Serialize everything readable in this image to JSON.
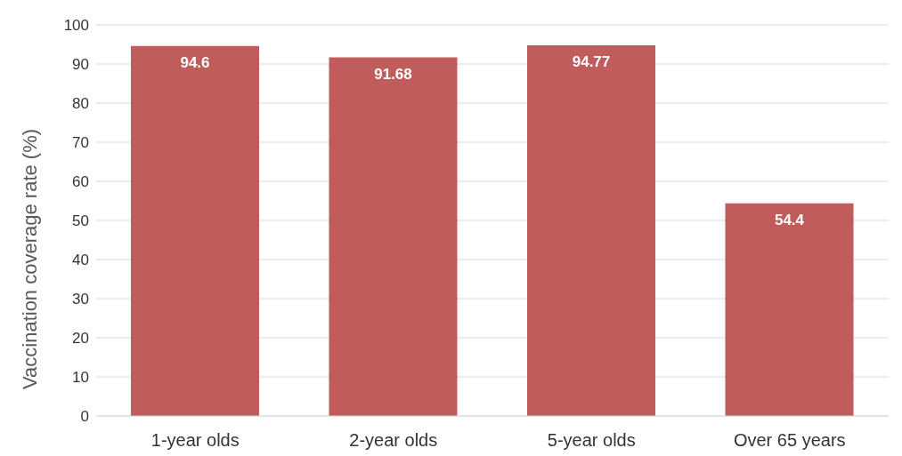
{
  "chart_data": {
    "type": "bar",
    "ylabel": "Vaccination coverage rate (%)",
    "categories": [
      "1-year olds",
      "2-year olds",
      "5-year olds",
      "Over 65 years"
    ],
    "values": [
      94.6,
      91.68,
      94.77,
      54.4
    ],
    "color": "#c05c5c",
    "ylim": [
      0,
      100
    ],
    "yticks": [
      0,
      10,
      20,
      30,
      40,
      50,
      60,
      70,
      80,
      90,
      100
    ],
    "grid": "y",
    "data_labels": true
  }
}
